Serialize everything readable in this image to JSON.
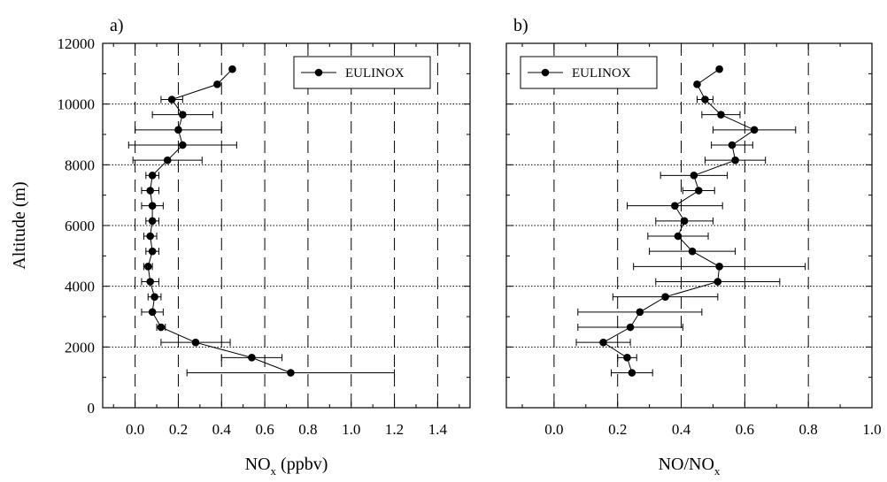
{
  "figure": {
    "ylabel": "Altitude (m)",
    "y_ticks": [
      "0",
      "2000",
      "4000",
      "6000",
      "8000",
      "10000",
      "12000"
    ]
  },
  "chart_data": [
    {
      "type": "line",
      "panel_label": "a)",
      "xlabel": "NO",
      "xlabel_sub": "x",
      "xlabel_suffix": " (ppbv)",
      "ylabel": "Altitude (m)",
      "xlim": [
        -0.15,
        1.55
      ],
      "ylim": [
        0,
        12000
      ],
      "x_ticks": [
        0.0,
        0.2,
        0.4,
        0.6,
        0.8,
        1.0,
        1.2,
        1.4
      ],
      "x_tick_labels": [
        "0.0",
        "0.2",
        "0.4",
        "0.6",
        "0.8",
        "1.0",
        "1.2",
        "1.4"
      ],
      "legend": {
        "label": "EULINOX",
        "placement": "top-right"
      },
      "grid": {
        "vertical": "dashed",
        "horizontal": "dotted"
      },
      "series": [
        {
          "name": "EULINOX",
          "points": [
            {
              "y": 11150,
              "x": 0.45,
              "err": 0
            },
            {
              "y": 10650,
              "x": 0.38,
              "err": 0
            },
            {
              "y": 10150,
              "x": 0.17,
              "err": 0.05
            },
            {
              "y": 9650,
              "x": 0.22,
              "err": 0.14
            },
            {
              "y": 9150,
              "x": 0.2,
              "err": 0.2
            },
            {
              "y": 8650,
              "x": 0.22,
              "err": 0.25
            },
            {
              "y": 8150,
              "x": 0.15,
              "err": 0.16
            },
            {
              "y": 7650,
              "x": 0.08,
              "err": 0.03
            },
            {
              "y": 7150,
              "x": 0.07,
              "err": 0.04
            },
            {
              "y": 6650,
              "x": 0.08,
              "err": 0.05
            },
            {
              "y": 6150,
              "x": 0.08,
              "err": 0.03
            },
            {
              "y": 5650,
              "x": 0.07,
              "err": 0.03
            },
            {
              "y": 5150,
              "x": 0.08,
              "err": 0.03
            },
            {
              "y": 4650,
              "x": 0.06,
              "err": 0.02
            },
            {
              "y": 4150,
              "x": 0.07,
              "err": 0.04
            },
            {
              "y": 3650,
              "x": 0.09,
              "err": 0.03
            },
            {
              "y": 3150,
              "x": 0.08,
              "err": 0.05
            },
            {
              "y": 2650,
              "x": 0.12,
              "err": 0.02
            },
            {
              "y": 2150,
              "x": 0.28,
              "err": 0.16
            },
            {
              "y": 1650,
              "x": 0.54,
              "err": 0.14
            },
            {
              "y": 1150,
              "x": 0.72,
              "err": 0.48
            }
          ]
        }
      ]
    },
    {
      "type": "line",
      "panel_label": "b)",
      "xlabel": "NO/NO",
      "xlabel_sub": "x",
      "xlabel_suffix": "",
      "ylabel": "",
      "xlim": [
        -0.15,
        1.0
      ],
      "ylim": [
        0,
        12000
      ],
      "x_ticks": [
        0.0,
        0.2,
        0.4,
        0.6,
        0.8,
        1.0
      ],
      "x_tick_labels": [
        "0.0",
        "0.2",
        "0.4",
        "0.6",
        "0.8",
        "1.0"
      ],
      "legend": {
        "label": "EULINOX",
        "placement": "top-left"
      },
      "grid": {
        "vertical": "dashed",
        "horizontal": "dotted"
      },
      "series": [
        {
          "name": "EULINOX",
          "points": [
            {
              "y": 11150,
              "x": 0.52,
              "err": 0
            },
            {
              "y": 10650,
              "x": 0.45,
              "err": 0
            },
            {
              "y": 10150,
              "x": 0.475,
              "err": 0.025
            },
            {
              "y": 9650,
              "x": 0.525,
              "err": 0.06
            },
            {
              "y": 9150,
              "x": 0.63,
              "err": 0.13
            },
            {
              "y": 8650,
              "x": 0.56,
              "err": 0.065
            },
            {
              "y": 8150,
              "x": 0.57,
              "err": 0.095
            },
            {
              "y": 7650,
              "x": 0.44,
              "err": 0.105
            },
            {
              "y": 7150,
              "x": 0.455,
              "err": 0.05
            },
            {
              "y": 6650,
              "x": 0.38,
              "err": 0.15
            },
            {
              "y": 6150,
              "x": 0.41,
              "err": 0.09
            },
            {
              "y": 5650,
              "x": 0.39,
              "err": 0.095
            },
            {
              "y": 5150,
              "x": 0.435,
              "err": 0.135
            },
            {
              "y": 4650,
              "x": 0.52,
              "err": 0.27
            },
            {
              "y": 4150,
              "x": 0.515,
              "err": 0.195
            },
            {
              "y": 3650,
              "x": 0.35,
              "err": 0.165
            },
            {
              "y": 3150,
              "x": 0.27,
              "err": 0.195
            },
            {
              "y": 2650,
              "x": 0.24,
              "err": 0.165
            },
            {
              "y": 2150,
              "x": 0.155,
              "err": 0.085
            },
            {
              "y": 1650,
              "x": 0.23,
              "err": 0.03
            },
            {
              "y": 1150,
              "x": 0.245,
              "err": 0.065
            }
          ]
        }
      ]
    }
  ]
}
